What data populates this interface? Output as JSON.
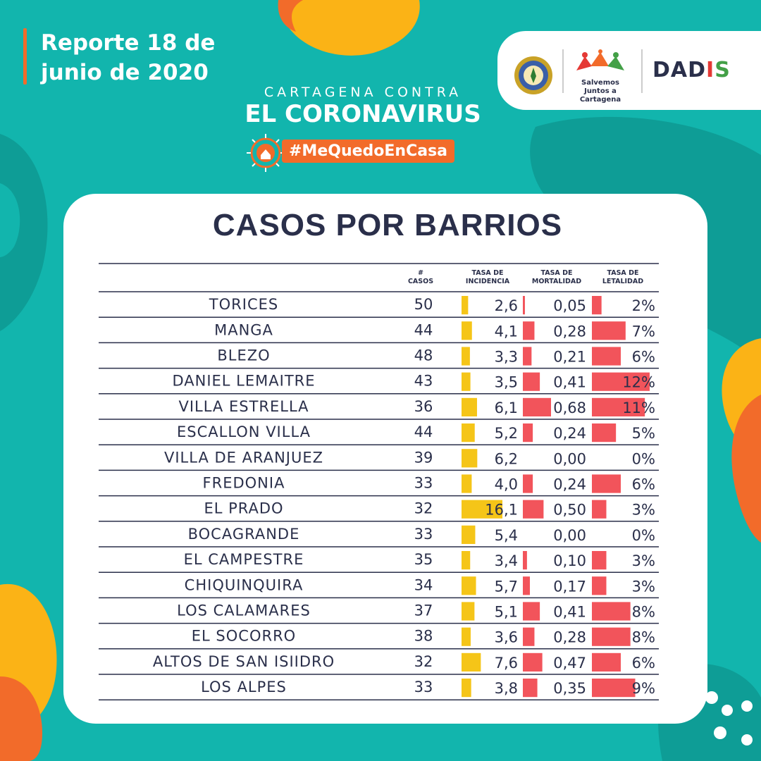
{
  "header": {
    "report_date": "Reporte 18 de junio de 2020",
    "campaign_line1": "CARTAGENA CONTRA",
    "campaign_line2": "EL CORONAVIRUS",
    "hashtag": "#MeQuedoEnCasa"
  },
  "logos": {
    "salvemos": "Salvemos Juntos a Cartagena",
    "dadis": "DADIS"
  },
  "colors": {
    "background": "#12b5ad",
    "card": "#ffffff",
    "text": "#2a2f4a",
    "incidence_bar": "#f5c518",
    "mortality_bar": "#f2545b",
    "orange": "#f26b2a",
    "yellow": "#fbb316"
  },
  "chart_data": {
    "type": "table",
    "title": "CASOS POR BARRIOS",
    "columns": [
      "# CASOS",
      "TASA DE INCIDENCIA",
      "TASA DE MORTALIDAD",
      "TASA DE LETALIDAD"
    ],
    "rows": [
      {
        "barrio": "TORICES",
        "casos": "50",
        "incidencia": "2,6",
        "mortalidad": "0,05",
        "letalidad": "2%"
      },
      {
        "barrio": "MANGA",
        "casos": "44",
        "incidencia": "4,1",
        "mortalidad": "0,28",
        "letalidad": "7%"
      },
      {
        "barrio": "BLEZO",
        "casos": "48",
        "incidencia": "3,3",
        "mortalidad": "0,21",
        "letalidad": "6%"
      },
      {
        "barrio": "DANIEL LEMAITRE",
        "casos": "43",
        "incidencia": "3,5",
        "mortalidad": "0,41",
        "letalidad": "12%"
      },
      {
        "barrio": "VILLA ESTRELLA",
        "casos": "36",
        "incidencia": "6,1",
        "mortalidad": "0,68",
        "letalidad": "11%"
      },
      {
        "barrio": "ESCALLON VILLA",
        "casos": "44",
        "incidencia": "5,2",
        "mortalidad": "0,24",
        "letalidad": "5%"
      },
      {
        "barrio": "VILLA DE ARANJUEZ",
        "casos": "39",
        "incidencia": "6,2",
        "mortalidad": "0,00",
        "letalidad": "0%"
      },
      {
        "barrio": "FREDONIA",
        "casos": "33",
        "incidencia": "4,0",
        "mortalidad": "0,24",
        "letalidad": "6%"
      },
      {
        "barrio": "EL PRADO",
        "casos": "32",
        "incidencia": "16,1",
        "mortalidad": "0,50",
        "letalidad": "3%"
      },
      {
        "barrio": "BOCAGRANDE",
        "casos": "33",
        "incidencia": "5,4",
        "mortalidad": "0,00",
        "letalidad": "0%"
      },
      {
        "barrio": "EL CAMPESTRE",
        "casos": "35",
        "incidencia": "3,4",
        "mortalidad": "0,10",
        "letalidad": "3%"
      },
      {
        "barrio": "CHIQUINQUIRA",
        "casos": "34",
        "incidencia": "5,7",
        "mortalidad": "0,17",
        "letalidad": "3%"
      },
      {
        "barrio": "LOS CALAMARES",
        "casos": "37",
        "incidencia": "5,1",
        "mortalidad": "0,41",
        "letalidad": "8%"
      },
      {
        "barrio": "EL SOCORRO",
        "casos": "38",
        "incidencia": "3,6",
        "mortalidad": "0,28",
        "letalidad": "8%"
      },
      {
        "barrio": "ALTOS DE SAN ISIIDRO",
        "casos": "32",
        "incidencia": "7,6",
        "mortalidad": "0,47",
        "letalidad": "6%"
      },
      {
        "barrio": "LOS ALPES",
        "casos": "33",
        "incidencia": "3,8",
        "mortalidad": "0,35",
        "letalidad": "9%"
      }
    ]
  }
}
